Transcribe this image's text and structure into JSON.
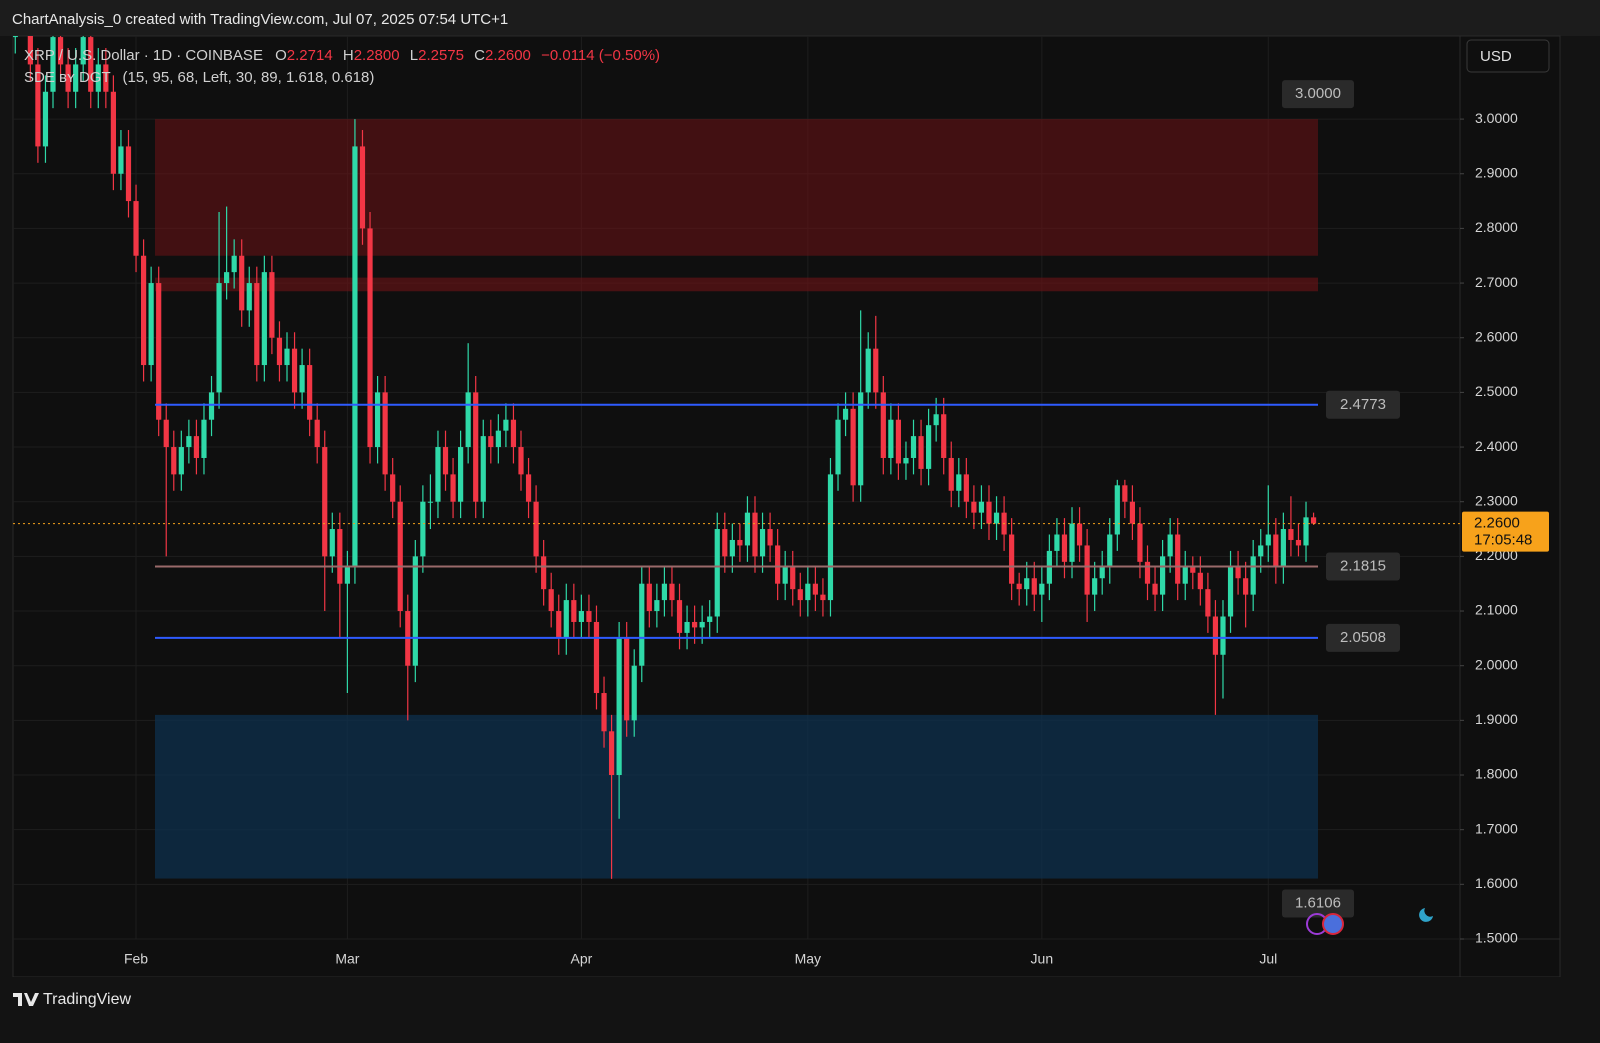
{
  "header": {
    "title": "ChartAnalysis_0 created with TradingView.com, Jul 07, 2025 07:54 UTC+1"
  },
  "legend": {
    "symbol": "XRP / U.S. Dollar · 1D · COINBASE",
    "o_label": "O",
    "o": "2.2714",
    "h_label": "H",
    "h": "2.2800",
    "l_label": "L",
    "l": "2.2575",
    "c_label": "C",
    "c": "2.2600",
    "change": "−0.0114 (−0.50%)",
    "indicator": "SDE ʙʏ DGT",
    "indicator_params": "(15, 95, 68, Left, 30, 89, 1.618, 0.618)"
  },
  "currency_button": "USD",
  "footer": {
    "brand": "TradingView"
  },
  "chart_data": {
    "type": "candlestick",
    "up_color": "#2fd9a8",
    "down_color": "#f23645",
    "grid": true,
    "ylim": [
      1.5,
      3.152
    ],
    "xlim": [
      -0.3,
      191.4
    ],
    "yticks": [
      {
        "value": 1.5,
        "label": "1.5000"
      },
      {
        "value": 1.6,
        "label": "1.6000"
      },
      {
        "value": 1.7,
        "label": "1.7000"
      },
      {
        "value": 1.8,
        "label": "1.8000"
      },
      {
        "value": 1.9,
        "label": "1.9000"
      },
      {
        "value": 2.0,
        "label": "2.0000"
      },
      {
        "value": 2.1,
        "label": "2.1000"
      },
      {
        "value": 2.2,
        "label": "2.2000"
      },
      {
        "value": 2.3,
        "label": "2.3000"
      },
      {
        "value": 2.4,
        "label": "2.4000"
      },
      {
        "value": 2.5,
        "label": "2.5000"
      },
      {
        "value": 2.6,
        "label": "2.6000"
      },
      {
        "value": 2.7,
        "label": "2.7000"
      },
      {
        "value": 2.8,
        "label": "2.8000"
      },
      {
        "value": 2.9,
        "label": "2.9000"
      },
      {
        "value": 3.0,
        "label": "3.0000"
      }
    ],
    "xticks": [
      {
        "value": 16,
        "label": "Feb"
      },
      {
        "value": 44,
        "label": "Mar"
      },
      {
        "value": 75,
        "label": "Apr"
      },
      {
        "value": 105,
        "label": "May"
      },
      {
        "value": 136,
        "label": "Jun"
      },
      {
        "value": 166,
        "label": "Jul"
      }
    ],
    "zones": [
      {
        "low": 2.75,
        "high": 3.0,
        "color": "rgba(110,18,22,0.55)"
      },
      {
        "low": 2.685,
        "high": 2.71,
        "color": "rgba(110,18,22,0.6)"
      },
      {
        "low": 1.6106,
        "high": 1.91,
        "color": "rgba(14,48,78,0.75)"
      }
    ],
    "zone_labels": [
      {
        "value": 3.0,
        "label": "3.0000"
      },
      {
        "value": 1.6106,
        "label": "1.6106"
      }
    ],
    "levels": [
      {
        "value": 2.4773,
        "label": "2.4773",
        "color": "#2f5bff"
      },
      {
        "value": 2.1815,
        "label": "2.1815",
        "color": "#9a6a6a"
      },
      {
        "value": 2.0508,
        "label": "2.0508",
        "color": "#2f5bff"
      }
    ],
    "last": {
      "value": 2.26,
      "label": "2.2600",
      "countdown": "17:05:48",
      "color": "#f7a21b"
    },
    "ohlc": [
      [
        3.15,
        3.23,
        3.12,
        3.2
      ],
      [
        3.2,
        3.33,
        3.17,
        3.3
      ],
      [
        3.3,
        3.33,
        3.07,
        3.1
      ],
      [
        3.1,
        3.13,
        2.92,
        2.95
      ],
      [
        2.95,
        3.08,
        2.92,
        3.05
      ],
      [
        3.05,
        3.18,
        3.02,
        3.15
      ],
      [
        3.15,
        3.18,
        3.07,
        3.1
      ],
      [
        3.1,
        3.13,
        3.02,
        3.05
      ],
      [
        3.05,
        3.13,
        3.02,
        3.1
      ],
      [
        3.1,
        3.18,
        3.07,
        3.15
      ],
      [
        3.15,
        3.18,
        3.02,
        3.05
      ],
      [
        3.05,
        3.13,
        3.02,
        3.1
      ],
      [
        3.1,
        3.13,
        3.02,
        3.05
      ],
      [
        3.05,
        3.08,
        2.87,
        2.9
      ],
      [
        2.9,
        2.98,
        2.87,
        2.95
      ],
      [
        2.95,
        2.98,
        2.82,
        2.85
      ],
      [
        2.85,
        2.88,
        2.72,
        2.75
      ],
      [
        2.75,
        2.78,
        2.52,
        2.55
      ],
      [
        2.55,
        2.73,
        2.52,
        2.7
      ],
      [
        2.7,
        2.73,
        2.42,
        2.45
      ],
      [
        2.45,
        2.48,
        2.2,
        2.4
      ],
      [
        2.4,
        2.43,
        2.32,
        2.35
      ],
      [
        2.35,
        2.43,
        2.32,
        2.4
      ],
      [
        2.4,
        2.45,
        2.37,
        2.42
      ],
      [
        2.42,
        2.45,
        2.35,
        2.38
      ],
      [
        2.38,
        2.48,
        2.35,
        2.45
      ],
      [
        2.45,
        2.53,
        2.42,
        2.5
      ],
      [
        2.5,
        2.83,
        2.47,
        2.7
      ],
      [
        2.7,
        2.84,
        2.67,
        2.72
      ],
      [
        2.72,
        2.78,
        2.69,
        2.75
      ],
      [
        2.75,
        2.78,
        2.62,
        2.65
      ],
      [
        2.65,
        2.73,
        2.62,
        2.7
      ],
      [
        2.7,
        2.73,
        2.52,
        2.55
      ],
      [
        2.55,
        2.75,
        2.52,
        2.72
      ],
      [
        2.72,
        2.75,
        2.57,
        2.6
      ],
      [
        2.6,
        2.63,
        2.52,
        2.55
      ],
      [
        2.55,
        2.61,
        2.52,
        2.58
      ],
      [
        2.58,
        2.61,
        2.47,
        2.5
      ],
      [
        2.5,
        2.58,
        2.47,
        2.55
      ],
      [
        2.55,
        2.58,
        2.42,
        2.45
      ],
      [
        2.45,
        2.48,
        2.37,
        2.4
      ],
      [
        2.4,
        2.43,
        2.1,
        2.2
      ],
      [
        2.2,
        2.28,
        2.17,
        2.25
      ],
      [
        2.25,
        2.28,
        2.05,
        2.15
      ],
      [
        2.15,
        2.21,
        1.95,
        2.18
      ],
      [
        2.18,
        3.0,
        2.15,
        2.95
      ],
      [
        2.95,
        2.98,
        2.77,
        2.8
      ],
      [
        2.8,
        2.83,
        2.37,
        2.4
      ],
      [
        2.4,
        2.53,
        2.37,
        2.5
      ],
      [
        2.5,
        2.53,
        2.32,
        2.35
      ],
      [
        2.35,
        2.38,
        2.27,
        2.3
      ],
      [
        2.3,
        2.33,
        2.07,
        2.1
      ],
      [
        2.1,
        2.13,
        1.9,
        2.0
      ],
      [
        2.0,
        2.23,
        1.97,
        2.2
      ],
      [
        2.2,
        2.33,
        2.17,
        2.3
      ],
      [
        2.3,
        2.35,
        2.25,
        2.3
      ],
      [
        2.3,
        2.43,
        2.27,
        2.4
      ],
      [
        2.4,
        2.43,
        2.32,
        2.35
      ],
      [
        2.35,
        2.38,
        2.27,
        2.3
      ],
      [
        2.3,
        2.43,
        2.27,
        2.4
      ],
      [
        2.4,
        2.59,
        2.37,
        2.5
      ],
      [
        2.5,
        2.53,
        2.27,
        2.3
      ],
      [
        2.3,
        2.45,
        2.27,
        2.42
      ],
      [
        2.42,
        2.45,
        2.37,
        2.4
      ],
      [
        2.4,
        2.46,
        2.37,
        2.43
      ],
      [
        2.43,
        2.48,
        2.4,
        2.45
      ],
      [
        2.45,
        2.48,
        2.37,
        2.4
      ],
      [
        2.4,
        2.43,
        2.32,
        2.35
      ],
      [
        2.35,
        2.38,
        2.27,
        2.3
      ],
      [
        2.3,
        2.33,
        2.17,
        2.2
      ],
      [
        2.2,
        2.23,
        2.11,
        2.14
      ],
      [
        2.14,
        2.17,
        2.07,
        2.1
      ],
      [
        2.1,
        2.13,
        2.02,
        2.05
      ],
      [
        2.05,
        2.15,
        2.02,
        2.12
      ],
      [
        2.12,
        2.15,
        2.05,
        2.08
      ],
      [
        2.08,
        2.13,
        2.05,
        2.1
      ],
      [
        2.1,
        2.13,
        2.05,
        2.08
      ],
      [
        2.08,
        2.11,
        1.92,
        1.95
      ],
      [
        1.95,
        1.98,
        1.85,
        1.88
      ],
      [
        1.88,
        1.91,
        1.61,
        1.8
      ],
      [
        1.8,
        2.08,
        1.72,
        2.05
      ],
      [
        2.05,
        2.08,
        1.87,
        1.9
      ],
      [
        1.9,
        2.03,
        1.87,
        2.0
      ],
      [
        2.0,
        2.18,
        1.97,
        2.15
      ],
      [
        2.15,
        2.18,
        2.07,
        2.1
      ],
      [
        2.1,
        2.15,
        2.07,
        2.12
      ],
      [
        2.12,
        2.18,
        2.09,
        2.15
      ],
      [
        2.15,
        2.18,
        2.09,
        2.12
      ],
      [
        2.12,
        2.15,
        2.03,
        2.06
      ],
      [
        2.06,
        2.11,
        2.03,
        2.08
      ],
      [
        2.08,
        2.11,
        2.04,
        2.07
      ],
      [
        2.07,
        2.11,
        2.04,
        2.08
      ],
      [
        2.08,
        2.12,
        2.05,
        2.09
      ],
      [
        2.09,
        2.28,
        2.06,
        2.25
      ],
      [
        2.25,
        2.28,
        2.17,
        2.2
      ],
      [
        2.2,
        2.26,
        2.17,
        2.23
      ],
      [
        2.23,
        2.26,
        2.19,
        2.22
      ],
      [
        2.22,
        2.31,
        2.19,
        2.28
      ],
      [
        2.28,
        2.31,
        2.17,
        2.2
      ],
      [
        2.2,
        2.28,
        2.17,
        2.25
      ],
      [
        2.25,
        2.28,
        2.19,
        2.22
      ],
      [
        2.22,
        2.25,
        2.12,
        2.15
      ],
      [
        2.15,
        2.21,
        2.12,
        2.18
      ],
      [
        2.18,
        2.21,
        2.11,
        2.14
      ],
      [
        2.14,
        2.17,
        2.09,
        2.12
      ],
      [
        2.12,
        2.18,
        2.09,
        2.15
      ],
      [
        2.15,
        2.18,
        2.1,
        2.13
      ],
      [
        2.13,
        2.16,
        2.09,
        2.12
      ],
      [
        2.12,
        2.38,
        2.09,
        2.35
      ],
      [
        2.35,
        2.48,
        2.32,
        2.45
      ],
      [
        2.45,
        2.5,
        2.42,
        2.47
      ],
      [
        2.47,
        2.5,
        2.3,
        2.33
      ],
      [
        2.33,
        2.65,
        2.3,
        2.5
      ],
      [
        2.5,
        2.61,
        2.47,
        2.58
      ],
      [
        2.58,
        2.64,
        2.47,
        2.5
      ],
      [
        2.5,
        2.53,
        2.35,
        2.38
      ],
      [
        2.38,
        2.48,
        2.35,
        2.45
      ],
      [
        2.45,
        2.48,
        2.34,
        2.37
      ],
      [
        2.37,
        2.41,
        2.34,
        2.38
      ],
      [
        2.38,
        2.45,
        2.35,
        2.42
      ],
      [
        2.42,
        2.45,
        2.33,
        2.36
      ],
      [
        2.36,
        2.47,
        2.33,
        2.44
      ],
      [
        2.44,
        2.49,
        2.41,
        2.46
      ],
      [
        2.46,
        2.49,
        2.35,
        2.38
      ],
      [
        2.38,
        2.41,
        2.29,
        2.32
      ],
      [
        2.32,
        2.38,
        2.29,
        2.35
      ],
      [
        2.35,
        2.38,
        2.27,
        2.3
      ],
      [
        2.3,
        2.33,
        2.25,
        2.28
      ],
      [
        2.28,
        2.33,
        2.25,
        2.3
      ],
      [
        2.3,
        2.33,
        2.23,
        2.26
      ],
      [
        2.26,
        2.31,
        2.23,
        2.28
      ],
      [
        2.28,
        2.31,
        2.21,
        2.24
      ],
      [
        2.24,
        2.27,
        2.12,
        2.15
      ],
      [
        2.15,
        2.17,
        2.11,
        2.14
      ],
      [
        2.14,
        2.19,
        2.11,
        2.16
      ],
      [
        2.16,
        2.19,
        2.1,
        2.13
      ],
      [
        2.13,
        2.18,
        2.08,
        2.15
      ],
      [
        2.15,
        2.24,
        2.12,
        2.21
      ],
      [
        2.21,
        2.27,
        2.18,
        2.24
      ],
      [
        2.24,
        2.27,
        2.16,
        2.19
      ],
      [
        2.19,
        2.29,
        2.16,
        2.26
      ],
      [
        2.26,
        2.29,
        2.19,
        2.22
      ],
      [
        2.22,
        2.25,
        2.08,
        2.13
      ],
      [
        2.13,
        2.19,
        2.1,
        2.16
      ],
      [
        2.16,
        2.21,
        2.13,
        2.18
      ],
      [
        2.18,
        2.27,
        2.15,
        2.24
      ],
      [
        2.24,
        2.34,
        2.21,
        2.33
      ],
      [
        2.33,
        2.34,
        2.27,
        2.3
      ],
      [
        2.3,
        2.33,
        2.23,
        2.26
      ],
      [
        2.26,
        2.29,
        2.16,
        2.19
      ],
      [
        2.19,
        2.22,
        2.12,
        2.15
      ],
      [
        2.15,
        2.18,
        2.1,
        2.13
      ],
      [
        2.13,
        2.23,
        2.1,
        2.2
      ],
      [
        2.2,
        2.27,
        2.17,
        2.24
      ],
      [
        2.24,
        2.27,
        2.12,
        2.15
      ],
      [
        2.15,
        2.21,
        2.12,
        2.18
      ],
      [
        2.18,
        2.2,
        2.14,
        2.17
      ],
      [
        2.17,
        2.2,
        2.11,
        2.14
      ],
      [
        2.14,
        2.17,
        2.06,
        2.09
      ],
      [
        2.09,
        2.12,
        1.91,
        2.02
      ],
      [
        2.02,
        2.12,
        1.94,
        2.09
      ],
      [
        2.09,
        2.21,
        2.06,
        2.18
      ],
      [
        2.18,
        2.21,
        2.13,
        2.16
      ],
      [
        2.16,
        2.19,
        2.07,
        2.13
      ],
      [
        2.13,
        2.23,
        2.1,
        2.2
      ],
      [
        2.2,
        2.25,
        2.17,
        2.22
      ],
      [
        2.22,
        2.33,
        2.19,
        2.24
      ],
      [
        2.24,
        2.27,
        2.15,
        2.18
      ],
      [
        2.18,
        2.28,
        2.15,
        2.25
      ],
      [
        2.25,
        2.31,
        2.2,
        2.23
      ],
      [
        2.23,
        2.26,
        2.2,
        2.22
      ],
      [
        2.22,
        2.3,
        2.19,
        2.2714
      ],
      [
        2.2714,
        2.28,
        2.2575,
        2.26
      ]
    ]
  }
}
